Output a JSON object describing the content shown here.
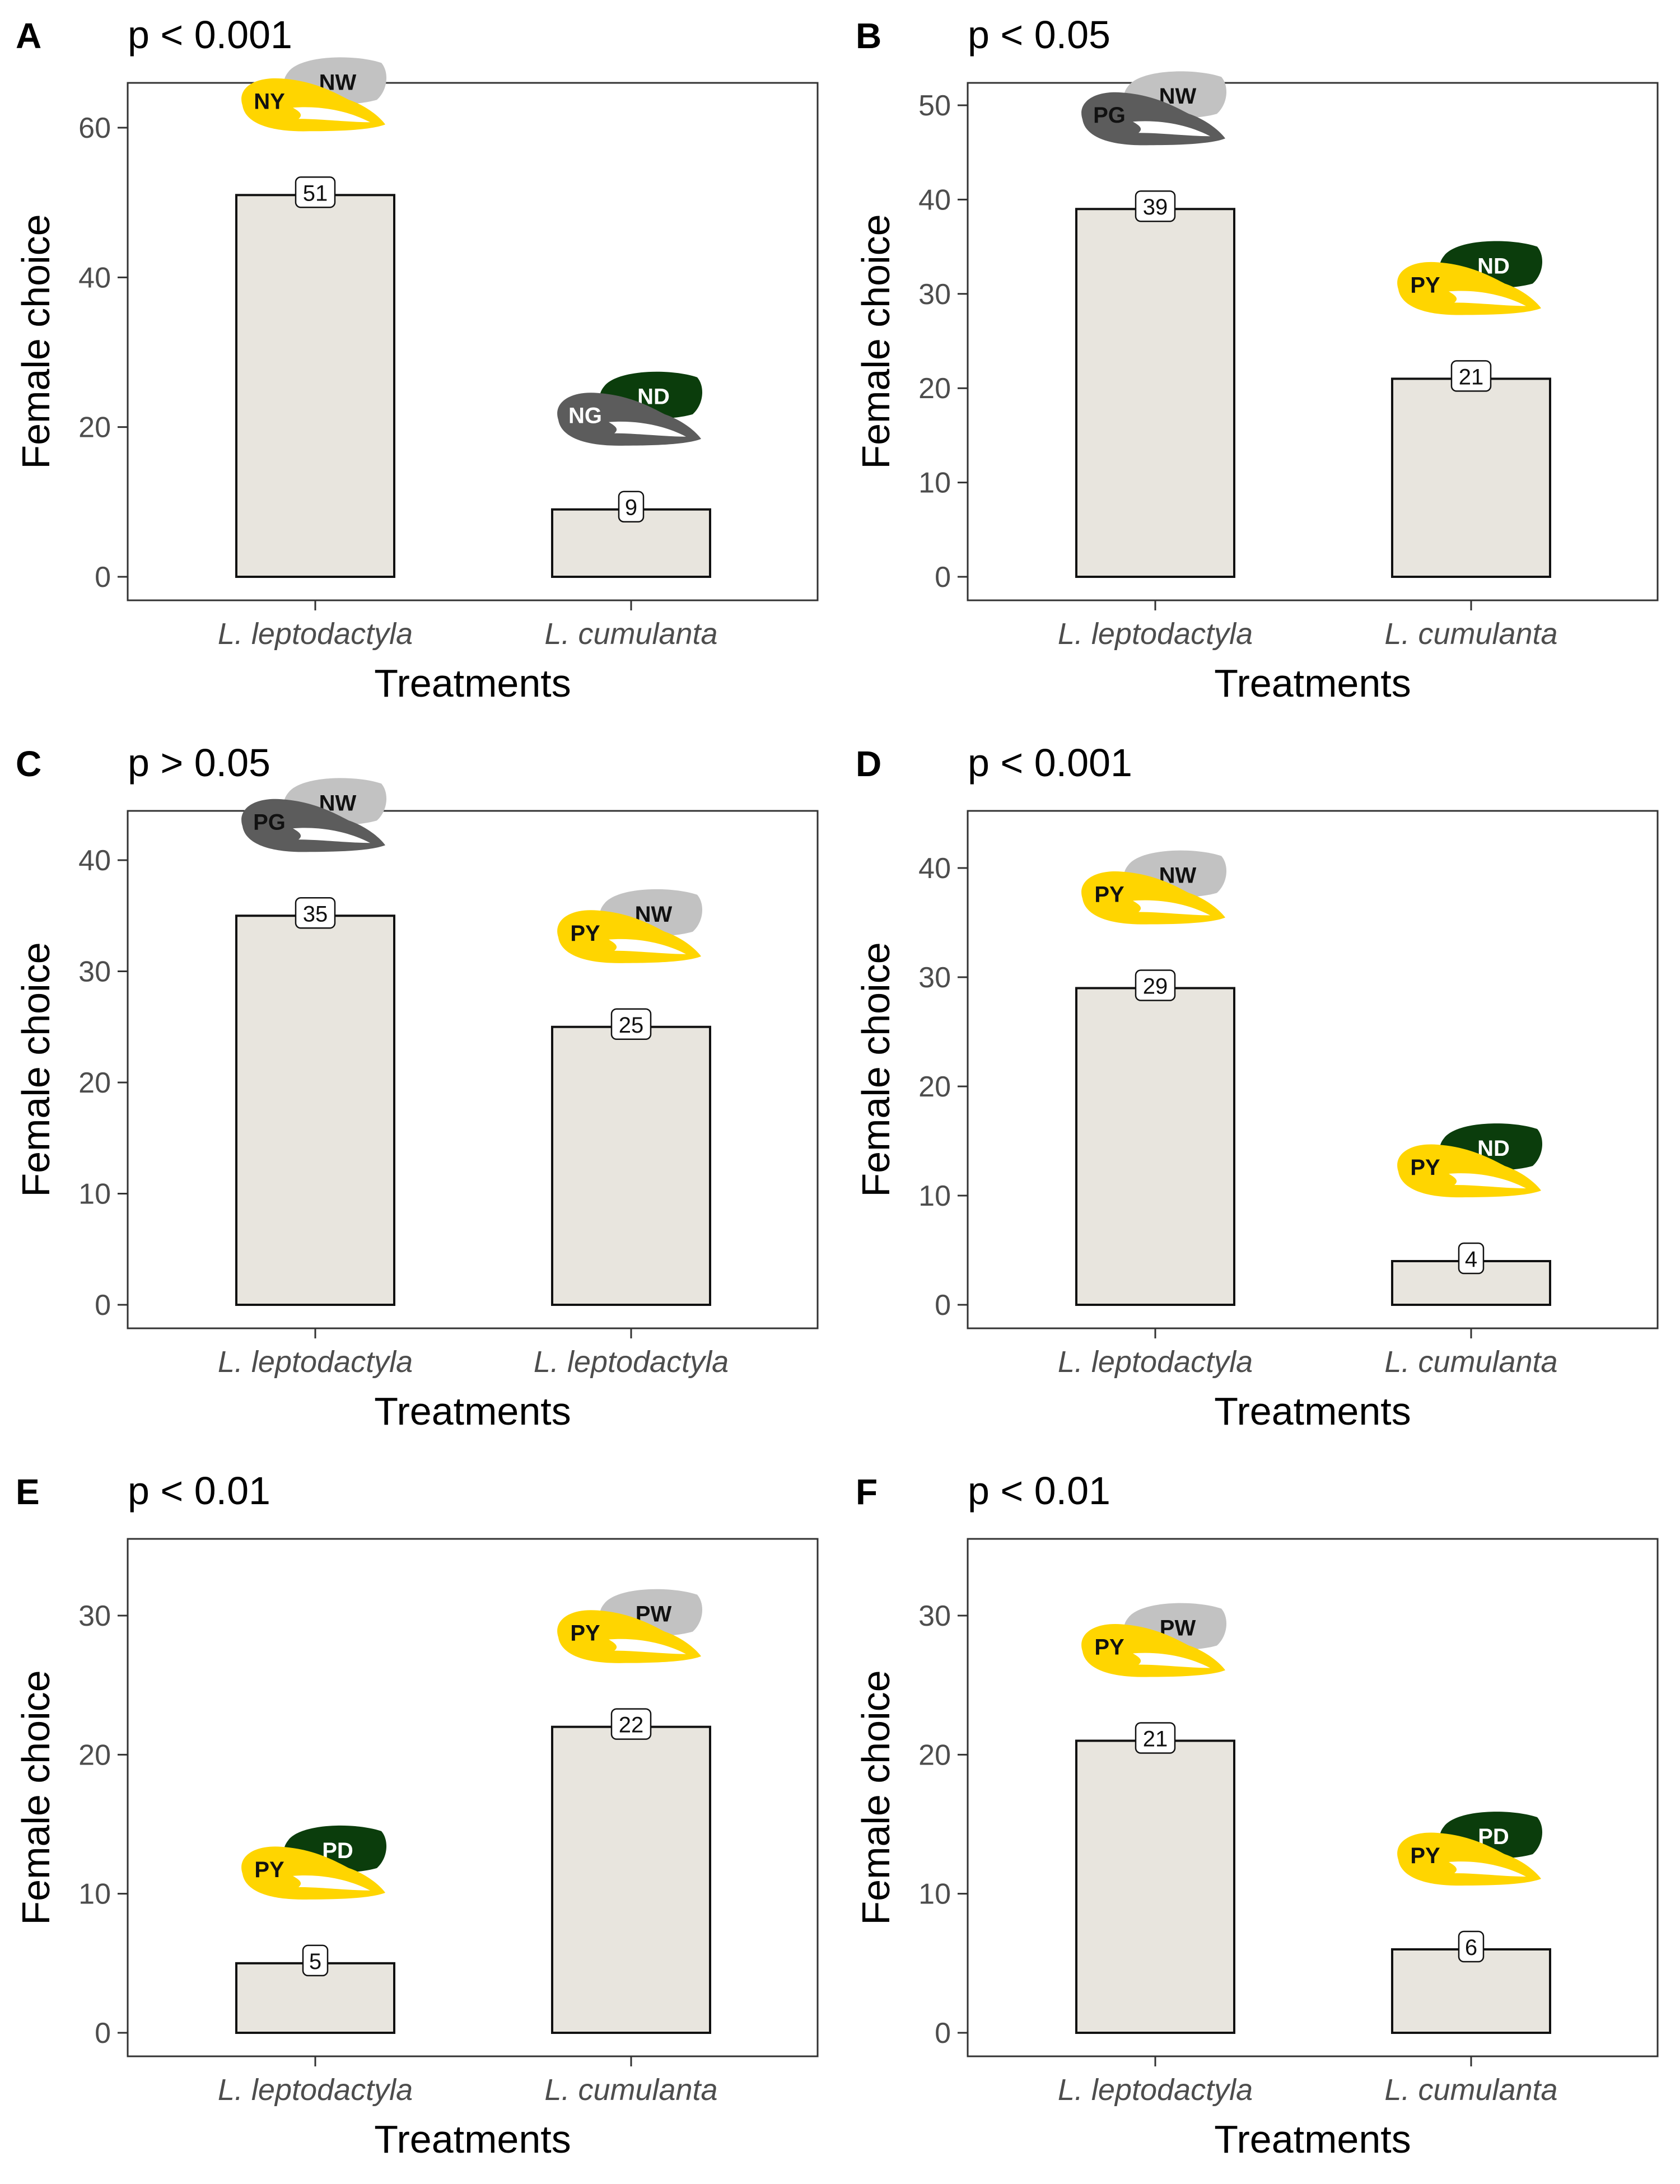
{
  "colors": {
    "bar_fill": "#e8e5de",
    "bar_stroke": "#111111",
    "frame": "#333333",
    "tick_text": "#4d4d4d",
    "yellow": "#ffd500",
    "light_gray": "#c2c2c2",
    "dark_gray": "#5c5c5c",
    "dark_green": "#0b3d0c",
    "text_dark": "#111111"
  },
  "chart_data": [
    {
      "panel": "A",
      "p_label": "p < 0.001",
      "type": "bar",
      "xlabel": "Treatments",
      "ylabel": "Female choice",
      "categories": [
        "L. leptodactyla",
        "L. cumulanta"
      ],
      "values": [
        51,
        9
      ],
      "ylim": [
        0,
        65
      ],
      "yticks": [
        0,
        20,
        40,
        60
      ],
      "icons": [
        {
          "front": "NY",
          "front_color": "yellow",
          "back": "NW",
          "back_color": "light_gray"
        },
        {
          "front": "NG",
          "front_color": "dark_gray",
          "back": "ND",
          "back_color": "dark_green"
        }
      ]
    },
    {
      "panel": "B",
      "p_label": "p < 0.05",
      "type": "bar",
      "xlabel": "Treatments",
      "ylabel": "Female choice",
      "categories": [
        "L. leptodactyla",
        "L. cumulanta"
      ],
      "values": [
        39,
        21
      ],
      "ylim": [
        0,
        50
      ],
      "yticks": [
        0,
        10,
        20,
        30,
        40,
        50
      ],
      "icons": [
        {
          "front": "PG",
          "front_color": "dark_gray",
          "back": "NW",
          "back_color": "light_gray"
        },
        {
          "front": "PY",
          "front_color": "yellow",
          "back": "ND",
          "back_color": "dark_green"
        }
      ]
    },
    {
      "panel": "C",
      "p_label": "p > 0.05",
      "type": "bar",
      "xlabel": "Treatments",
      "ylabel": "Female choice",
      "categories": [
        "L. leptodactyla",
        "L. leptodactyla"
      ],
      "values": [
        35,
        25
      ],
      "ylim": [
        0,
        45
      ],
      "yticks": [
        0,
        10,
        20,
        30,
        40
      ],
      "icons": [
        {
          "front": "PG",
          "front_color": "dark_gray",
          "back": "NW",
          "back_color": "light_gray"
        },
        {
          "front": "PY",
          "front_color": "yellow",
          "back": "NW",
          "back_color": "light_gray"
        }
      ]
    },
    {
      "panel": "D",
      "p_label": "p < 0.001",
      "type": "bar",
      "xlabel": "Treatments",
      "ylabel": "Female choice",
      "categories": [
        "L. leptodactyla",
        "L. cumulanta"
      ],
      "values": [
        29,
        4
      ],
      "ylim": [
        0,
        40
      ],
      "yticks": [
        0,
        10,
        20,
        30,
        40
      ],
      "icons": [
        {
          "front": "PY",
          "front_color": "yellow",
          "back": "NW",
          "back_color": "light_gray"
        },
        {
          "front": "PY",
          "front_color": "yellow",
          "back": "ND",
          "back_color": "dark_green"
        }
      ]
    },
    {
      "panel": "E",
      "p_label": "p < 0.01",
      "type": "bar",
      "xlabel": "Treatments",
      "ylabel": "Female choice",
      "categories": [
        "L. leptodactyla",
        "L. cumulanta"
      ],
      "values": [
        5,
        22
      ],
      "ylim": [
        0,
        30
      ],
      "yticks": [
        0,
        10,
        20,
        30
      ],
      "icons": [
        {
          "front": "PY",
          "front_color": "yellow",
          "back": "PD",
          "back_color": "dark_green"
        },
        {
          "front": "PY",
          "front_color": "yellow",
          "back": "PW",
          "back_color": "light_gray"
        }
      ]
    },
    {
      "panel": "F",
      "p_label": "p < 0.01",
      "type": "bar",
      "xlabel": "Treatments",
      "ylabel": "Female choice",
      "categories": [
        "L. leptodactyla",
        "L. cumulanta"
      ],
      "values": [
        21,
        6
      ],
      "ylim": [
        0,
        30
      ],
      "yticks": [
        0,
        10,
        20,
        30
      ],
      "icons": [
        {
          "front": "PY",
          "front_color": "yellow",
          "back": "PW",
          "back_color": "light_gray"
        },
        {
          "front": "PY",
          "front_color": "yellow",
          "back": "PD",
          "back_color": "dark_green"
        }
      ]
    }
  ]
}
